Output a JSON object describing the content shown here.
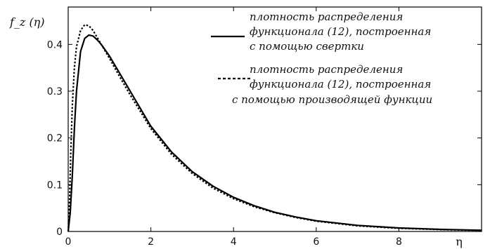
{
  "chart_data": {
    "type": "line",
    "xlabel": "η",
    "ylabel": "f_z (η)",
    "xlim": [
      0,
      10
    ],
    "ylim": [
      0,
      0.48
    ],
    "x_ticks": [
      "0",
      "2",
      "4",
      "6",
      "8"
    ],
    "y_ticks": [
      "0",
      "0.1",
      "0.2",
      "0.3",
      "0.4"
    ],
    "x_tick_values": [
      0,
      2,
      4,
      6,
      8
    ],
    "y_tick_values": [
      0,
      0.1,
      0.2,
      0.3,
      0.4
    ],
    "grid": false,
    "legend_position": "top-right",
    "series": [
      {
        "line_style": "solid",
        "color": "#000000",
        "legend_lines": [
          "плотность распределения",
          "функционала (12), построенная",
          "с помощью свертки"
        ],
        "x": [
          0,
          0.05,
          0.1,
          0.15,
          0.2,
          0.3,
          0.4,
          0.5,
          0.6,
          0.7,
          0.8,
          1.0,
          1.2,
          1.5,
          2.0,
          2.5,
          3.0,
          3.5,
          4.0,
          4.5,
          5.0,
          5.5,
          6.0,
          7.0,
          8.0,
          9.0,
          10.0
        ],
        "y": [
          0,
          0.04,
          0.12,
          0.22,
          0.3,
          0.385,
          0.413,
          0.42,
          0.418,
          0.41,
          0.4,
          0.375,
          0.345,
          0.3,
          0.225,
          0.17,
          0.128,
          0.097,
          0.073,
          0.055,
          0.041,
          0.031,
          0.023,
          0.013,
          0.0075,
          0.0045,
          0.0025
        ]
      },
      {
        "line_style": "dotted",
        "color": "#000000",
        "legend_lines": [
          "плотность распределения",
          "функционала (12), построенная",
          "с помощью производящей функции"
        ],
        "x": [
          0,
          0.03,
          0.06,
          0.1,
          0.15,
          0.2,
          0.3,
          0.4,
          0.5,
          0.6,
          0.7,
          0.8,
          1.0,
          1.2,
          1.5,
          2.0,
          2.5,
          3.0,
          3.5,
          4.0,
          4.5,
          5.0,
          5.5,
          6.0,
          7.0,
          8.0,
          9.0,
          10.0
        ],
        "y": [
          0,
          0.06,
          0.16,
          0.27,
          0.35,
          0.395,
          0.43,
          0.442,
          0.44,
          0.43,
          0.415,
          0.4,
          0.37,
          0.338,
          0.292,
          0.22,
          0.165,
          0.124,
          0.093,
          0.07,
          0.053,
          0.04,
          0.03,
          0.022,
          0.012,
          0.0068,
          0.004,
          0.0022
        ]
      }
    ]
  }
}
